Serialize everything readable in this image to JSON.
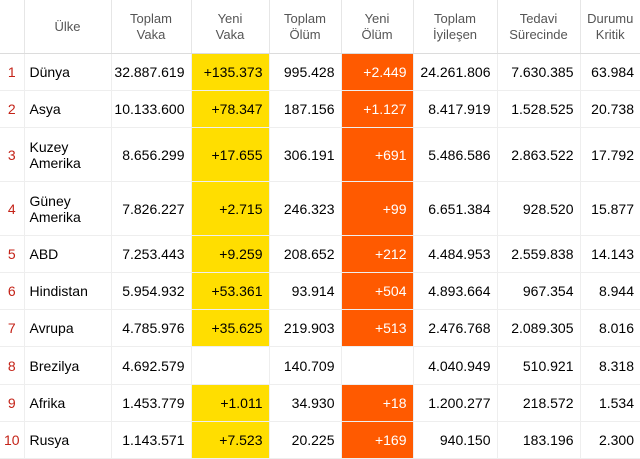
{
  "headers": {
    "rank": "",
    "country": "Ülke",
    "total_cases": "Toplam\nVaka",
    "new_cases": "Yeni\nVaka",
    "total_deaths": "Toplam\nÖlüm",
    "new_deaths": "Yeni\nÖlüm",
    "total_recovered": "Toplam\nİyileşen",
    "active": "Tedavi\nSürecinde",
    "critical": "Durumu\nKritik"
  },
  "rows": [
    {
      "rank": "1",
      "country": "Dünya",
      "total_cases": "32.887.619",
      "new_cases": "+135.373",
      "total_deaths": "995.428",
      "new_deaths": "+2.449",
      "total_recovered": "24.261.806",
      "active": "7.630.385",
      "critical": "63.984"
    },
    {
      "rank": "2",
      "country": "Asya",
      "total_cases": "10.133.600",
      "new_cases": "+78.347",
      "total_deaths": "187.156",
      "new_deaths": "+1.127",
      "total_recovered": "8.417.919",
      "active": "1.528.525",
      "critical": "20.738"
    },
    {
      "rank": "3",
      "country": "Kuzey Amerika",
      "total_cases": "8.656.299",
      "new_cases": "+17.655",
      "total_deaths": "306.191",
      "new_deaths": "+691",
      "total_recovered": "5.486.586",
      "active": "2.863.522",
      "critical": "17.792"
    },
    {
      "rank": "4",
      "country": "Güney Amerika",
      "total_cases": "7.826.227",
      "new_cases": "+2.715",
      "total_deaths": "246.323",
      "new_deaths": "+99",
      "total_recovered": "6.651.384",
      "active": "928.520",
      "critical": "15.877"
    },
    {
      "rank": "5",
      "country": "ABD",
      "total_cases": "7.253.443",
      "new_cases": "+9.259",
      "total_deaths": "208.652",
      "new_deaths": "+212",
      "total_recovered": "4.484.953",
      "active": "2.559.838",
      "critical": "14.143"
    },
    {
      "rank": "6",
      "country": "Hindistan",
      "total_cases": "5.954.932",
      "new_cases": "+53.361",
      "total_deaths": "93.914",
      "new_deaths": "+504",
      "total_recovered": "4.893.664",
      "active": "967.354",
      "critical": "8.944"
    },
    {
      "rank": "7",
      "country": "Avrupa",
      "total_cases": "4.785.976",
      "new_cases": "+35.625",
      "total_deaths": "219.903",
      "new_deaths": "+513",
      "total_recovered": "2.476.768",
      "active": "2.089.305",
      "critical": "8.016"
    },
    {
      "rank": "8",
      "country": "Brezilya",
      "total_cases": "4.692.579",
      "new_cases": "",
      "total_deaths": "140.709",
      "new_deaths": "",
      "total_recovered": "4.040.949",
      "active": "510.921",
      "critical": "8.318"
    },
    {
      "rank": "9",
      "country": "Afrika",
      "total_cases": "1.453.779",
      "new_cases": "+1.011",
      "total_deaths": "34.930",
      "new_deaths": "+18",
      "total_recovered": "1.200.277",
      "active": "218.572",
      "critical": "1.534"
    },
    {
      "rank": "10",
      "country": "Rusya",
      "total_cases": "1.143.571",
      "new_cases": "+7.523",
      "total_deaths": "20.225",
      "new_deaths": "+169",
      "total_recovered": "940.150",
      "active": "183.196",
      "critical": "2.300"
    }
  ],
  "colors": {
    "new_cases_highlight": "#ffde00",
    "new_deaths_highlight": "#ff5a00",
    "rank_text": "#c42318"
  }
}
